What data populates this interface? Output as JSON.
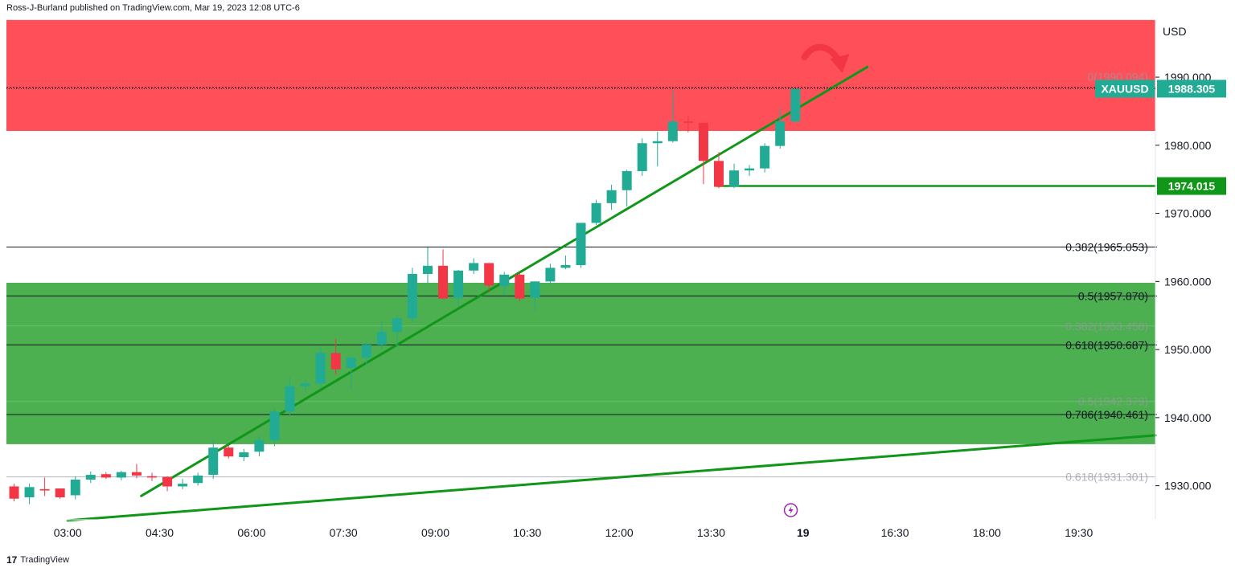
{
  "header": {
    "publisher_line": "Ross-J-Burland published on TradingView.com, Mar 19, 2023 12:08 UTC-6"
  },
  "footer": {
    "brand": "TradingView",
    "logo_glyph": "17"
  },
  "chart_data": {
    "type": "candlestick",
    "symbol": "XAUUSD",
    "currency": "USD",
    "ylim": [
      1925.0,
      1998.5
    ],
    "y_ticks": [
      1930,
      1940,
      1950,
      1960,
      1970,
      1980,
      1990
    ],
    "y_tick_labels": [
      "1930.000",
      "1940.000",
      "1950.000",
      "1960.000",
      "1970.000",
      "1980.000",
      "1990.000"
    ],
    "x_range_hours": [
      2.0,
      20.75
    ],
    "x_tick_labels": [
      {
        "label": "03:00",
        "t": 3.0
      },
      {
        "label": "04:30",
        "t": 4.5
      },
      {
        "label": "06:00",
        "t": 6.0
      },
      {
        "label": "07:30",
        "t": 7.5
      },
      {
        "label": "09:00",
        "t": 9.0
      },
      {
        "label": "10:30",
        "t": 10.5
      },
      {
        "label": "12:00",
        "t": 12.0
      },
      {
        "label": "13:30",
        "t": 13.5
      },
      {
        "label": "19",
        "t": 15.0,
        "bold": true
      },
      {
        "label": "16:30",
        "t": 16.5
      },
      {
        "label": "18:00",
        "t": 18.0
      },
      {
        "label": "19:30",
        "t": 19.5
      }
    ],
    "candles": [
      {
        "t": 2.125,
        "o": 1929.9,
        "h": 1930.3,
        "l": 1927.7,
        "c": 1928.1
      },
      {
        "t": 2.375,
        "o": 1928.3,
        "h": 1930.3,
        "l": 1927.3,
        "c": 1929.8
      },
      {
        "t": 2.625,
        "o": 1929.5,
        "h": 1931.2,
        "l": 1928.5,
        "c": 1929.3
      },
      {
        "t": 2.875,
        "o": 1929.6,
        "h": 1929.6,
        "l": 1928.1,
        "c": 1928.3
      },
      {
        "t": 3.125,
        "o": 1928.6,
        "h": 1931.4,
        "l": 1928.0,
        "c": 1930.9
      },
      {
        "t": 3.375,
        "o": 1930.9,
        "h": 1932.1,
        "l": 1930.4,
        "c": 1931.6
      },
      {
        "t": 3.625,
        "o": 1931.7,
        "h": 1932.0,
        "l": 1931.0,
        "c": 1931.2
      },
      {
        "t": 3.875,
        "o": 1931.2,
        "h": 1932.2,
        "l": 1930.8,
        "c": 1932.0
      },
      {
        "t": 4.125,
        "o": 1932.0,
        "h": 1933.2,
        "l": 1931.1,
        "c": 1931.5
      },
      {
        "t": 4.375,
        "o": 1931.4,
        "h": 1931.9,
        "l": 1930.7,
        "c": 1931.2
      },
      {
        "t": 4.625,
        "o": 1931.3,
        "h": 1931.4,
        "l": 1929.2,
        "c": 1929.9
      },
      {
        "t": 4.875,
        "o": 1929.9,
        "h": 1931.0,
        "l": 1929.5,
        "c": 1930.3
      },
      {
        "t": 5.125,
        "o": 1930.4,
        "h": 1931.9,
        "l": 1930.0,
        "c": 1931.5
      },
      {
        "t": 5.375,
        "o": 1931.6,
        "h": 1936.8,
        "l": 1931.0,
        "c": 1935.6
      },
      {
        "t": 5.625,
        "o": 1935.6,
        "h": 1936.0,
        "l": 1934.0,
        "c": 1934.3
      },
      {
        "t": 5.875,
        "o": 1934.2,
        "h": 1935.4,
        "l": 1933.6,
        "c": 1934.9
      },
      {
        "t": 6.125,
        "o": 1935.0,
        "h": 1937.4,
        "l": 1934.3,
        "c": 1936.7
      },
      {
        "t": 6.375,
        "o": 1936.7,
        "h": 1941.4,
        "l": 1935.8,
        "c": 1940.9
      },
      {
        "t": 6.625,
        "o": 1940.9,
        "h": 1945.9,
        "l": 1940.3,
        "c": 1944.6
      },
      {
        "t": 6.875,
        "o": 1944.6,
        "h": 1945.6,
        "l": 1943.9,
        "c": 1945.0
      },
      {
        "t": 7.125,
        "o": 1945.0,
        "h": 1950.5,
        "l": 1944.3,
        "c": 1949.5
      },
      {
        "t": 7.375,
        "o": 1949.5,
        "h": 1951.6,
        "l": 1946.3,
        "c": 1947.1
      },
      {
        "t": 7.625,
        "o": 1947.3,
        "h": 1949.0,
        "l": 1944.2,
        "c": 1948.8
      },
      {
        "t": 7.875,
        "o": 1948.8,
        "h": 1951.3,
        "l": 1947.8,
        "c": 1950.7
      },
      {
        "t": 8.125,
        "o": 1950.7,
        "h": 1954.3,
        "l": 1950.0,
        "c": 1952.6
      },
      {
        "t": 8.375,
        "o": 1952.6,
        "h": 1955.0,
        "l": 1950.3,
        "c": 1954.6
      },
      {
        "t": 8.625,
        "o": 1954.6,
        "h": 1962.0,
        "l": 1954.0,
        "c": 1961.1
      },
      {
        "t": 8.875,
        "o": 1961.1,
        "h": 1965.0,
        "l": 1959.7,
        "c": 1962.3
      },
      {
        "t": 9.125,
        "o": 1962.3,
        "h": 1964.7,
        "l": 1957.4,
        "c": 1957.5
      },
      {
        "t": 9.375,
        "o": 1957.6,
        "h": 1961.7,
        "l": 1956.3,
        "c": 1961.6
      },
      {
        "t": 9.625,
        "o": 1961.6,
        "h": 1963.4,
        "l": 1961.1,
        "c": 1962.7
      },
      {
        "t": 9.875,
        "o": 1962.7,
        "h": 1962.7,
        "l": 1958.4,
        "c": 1959.4
      },
      {
        "t": 10.125,
        "o": 1959.3,
        "h": 1961.4,
        "l": 1957.9,
        "c": 1961.0
      },
      {
        "t": 10.375,
        "o": 1961.0,
        "h": 1961.3,
        "l": 1957.1,
        "c": 1957.5
      },
      {
        "t": 10.625,
        "o": 1957.6,
        "h": 1960.0,
        "l": 1955.7,
        "c": 1960.0
      },
      {
        "t": 10.875,
        "o": 1960.0,
        "h": 1962.6,
        "l": 1959.6,
        "c": 1962.0
      },
      {
        "t": 11.125,
        "o": 1962.0,
        "h": 1963.8,
        "l": 1961.8,
        "c": 1962.4
      },
      {
        "t": 11.375,
        "o": 1962.4,
        "h": 1968.6,
        "l": 1962.0,
        "c": 1968.6
      },
      {
        "t": 11.625,
        "o": 1968.6,
        "h": 1972.0,
        "l": 1968.3,
        "c": 1971.5
      },
      {
        "t": 11.875,
        "o": 1971.5,
        "h": 1974.2,
        "l": 1970.5,
        "c": 1973.4
      },
      {
        "t": 12.125,
        "o": 1973.4,
        "h": 1976.4,
        "l": 1971.0,
        "c": 1976.2
      },
      {
        "t": 12.375,
        "o": 1976.2,
        "h": 1981.0,
        "l": 1975.5,
        "c": 1980.3
      },
      {
        "t": 12.625,
        "o": 1980.3,
        "h": 1982.0,
        "l": 1976.9,
        "c": 1980.6
      },
      {
        "t": 12.875,
        "o": 1980.6,
        "h": 1988.0,
        "l": 1980.4,
        "c": 1983.5
      },
      {
        "t": 13.125,
        "o": 1983.5,
        "h": 1984.4,
        "l": 1981.9,
        "c": 1983.3
      },
      {
        "t": 13.375,
        "o": 1983.3,
        "h": 1983.5,
        "l": 1974.3,
        "c": 1977.7
      },
      {
        "t": 13.625,
        "o": 1977.7,
        "h": 1979.0,
        "l": 1973.7,
        "c": 1973.9
      },
      {
        "t": 13.875,
        "o": 1973.9,
        "h": 1977.3,
        "l": 1973.7,
        "c": 1976.3
      },
      {
        "t": 14.125,
        "o": 1976.3,
        "h": 1977.1,
        "l": 1975.5,
        "c": 1976.6
      },
      {
        "t": 14.375,
        "o": 1976.6,
        "h": 1980.3,
        "l": 1976.0,
        "c": 1979.9
      },
      {
        "t": 14.625,
        "o": 1979.9,
        "h": 1985.4,
        "l": 1979.5,
        "c": 1983.5
      },
      {
        "t": 14.875,
        "o": 1983.5,
        "h": 1988.3,
        "l": 1983.3,
        "c": 1988.3
      }
    ],
    "zones": [
      {
        "name": "resistance-zone",
        "from": 1982.1,
        "to": 1998.4,
        "color": "#ff5059"
      },
      {
        "name": "support-zone",
        "from": 1936.1,
        "to": 1959.8,
        "color": "#4caf50"
      }
    ],
    "fib_levels": [
      {
        "label": "0.382(1965.053)",
        "value": 1965.053,
        "faded": false
      },
      {
        "label": "0.5(1957.870)",
        "value": 1957.87,
        "faded": false
      },
      {
        "label": "0.382(1953.458)",
        "value": 1953.458,
        "faded": true
      },
      {
        "label": "0.618(1950.687)",
        "value": 1950.687,
        "faded": false
      },
      {
        "label": "0.5(1942.379)",
        "value": 1942.379,
        "faded": true
      },
      {
        "label": "0.786(1940.461)",
        "value": 1940.461,
        "faded": false
      },
      {
        "label": "0.618(1931.301)",
        "value": 1931.301,
        "faded": true
      },
      {
        "label": "0(1990.094)",
        "value": 1990.094,
        "faded": true
      },
      {
        "label": "0(1",
        "value": 1988.5,
        "faded": false
      }
    ],
    "horizontal_line": {
      "value": 1974.015,
      "label": "1974.015",
      "color": "#109618"
    },
    "trendlines": [
      {
        "t1": 4.2,
        "v1": 1928.5,
        "t2": 16.05,
        "v2": 1991.5,
        "color": "#109618"
      },
      {
        "t1": 3.0,
        "v1": 1924.9,
        "t2": 20.75,
        "v2": 1937.4,
        "color": "#109618"
      }
    ],
    "last_price": {
      "symbol": "XAUUSD",
      "value": 1988.305,
      "label": "1988.305",
      "color": "#22ab94"
    },
    "up_color": "#22ab94",
    "down_color": "#f23645"
  }
}
